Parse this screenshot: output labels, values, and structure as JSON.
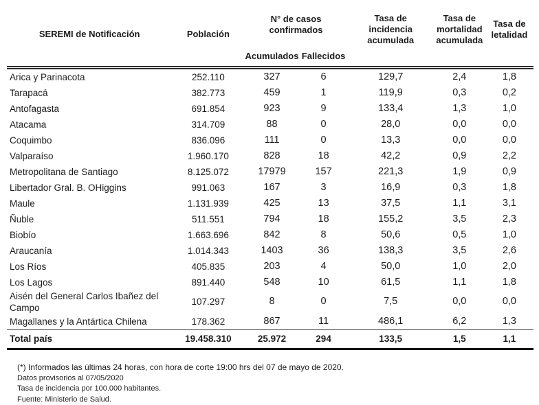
{
  "table": {
    "headers": {
      "region": "SEREMI de Notificación",
      "population": "Población",
      "cases_group": "N° de casos confirmados",
      "accumulated": "Acumulados",
      "deceased": "Fallecidos",
      "incidence_rate": "Tasa de incidencia acumulada",
      "mortality_rate": "Tasa de mortalidad acumulada",
      "lethality_rate": "Tasa de letalidad"
    },
    "rows": [
      [
        "Arica y Parinacota",
        "252.110",
        "327",
        "6",
        "129,7",
        "2,4",
        "1,8"
      ],
      [
        "Tarapacá",
        "382.773",
        "459",
        "1",
        "119,9",
        "0,3",
        "0,2"
      ],
      [
        "Antofagasta",
        "691.854",
        "923",
        "9",
        "133,4",
        "1,3",
        "1,0"
      ],
      [
        "Atacama",
        "314.709",
        "88",
        "0",
        "28,0",
        "0,0",
        "0,0"
      ],
      [
        "Coquimbo",
        "836.096",
        "111",
        "0",
        "13,3",
        "0,0",
        "0,0"
      ],
      [
        "Valparaíso",
        "1.960.170",
        "828",
        "18",
        "42,2",
        "0,9",
        "2,2"
      ],
      [
        "Metropolitana de Santiago",
        "8.125.072",
        "17979",
        "157",
        "221,3",
        "1,9",
        "0,9"
      ],
      [
        "Libertador Gral. B. OHiggins",
        "991.063",
        "167",
        "3",
        "16,9",
        "0,3",
        "1,8"
      ],
      [
        "Maule",
        "1.131.939",
        "425",
        "13",
        "37,5",
        "1,1",
        "3,1"
      ],
      [
        "Ñuble",
        "511.551",
        "794",
        "18",
        "155,2",
        "3,5",
        "2,3"
      ],
      [
        "Biobío",
        "1.663.696",
        "842",
        "8",
        "50,6",
        "0,5",
        "1,0"
      ],
      [
        "Araucanía",
        "1.014.343",
        "1403",
        "36",
        "138,3",
        "3,5",
        "2,6"
      ],
      [
        "Los Ríos",
        "405.835",
        "203",
        "4",
        "50,0",
        "1,0",
        "2,0"
      ],
      [
        "Los Lagos",
        "891.440",
        "548",
        "10",
        "61,5",
        "1,1",
        "1,8"
      ],
      [
        "Aisén del General Carlos Ibañez del Campo",
        "107.297",
        "8",
        "0",
        "7,5",
        "0,0",
        "0,0"
      ],
      [
        "Magallanes y la Antártica Chilena",
        "178.362",
        "867",
        "11",
        "486,1",
        "6,2",
        "1,3"
      ]
    ],
    "total": [
      "Total país",
      "19.458.310",
      "25.972",
      "294",
      "133,5",
      "1,5",
      "1,1"
    ]
  },
  "footnotes": [
    "(*) Informados las últimas 24 horas, con hora de corte 19:00 hrs del 07 de mayo de 2020.",
    "Datos provisorios al 07/05/2020",
    "Tasa de incidencia por 100.000 habitantes.",
    "Fuente: Ministerio de Salud."
  ]
}
